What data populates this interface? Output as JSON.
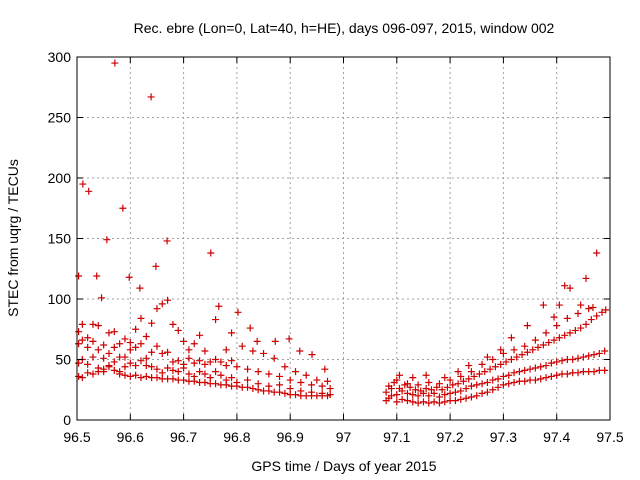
{
  "colors": {
    "series": "#cc0000",
    "grid": "#a0a0a0",
    "axis": "#000000",
    "background": "#ffffff"
  },
  "chart_data": {
    "type": "scatter",
    "title": "Rec. ebre (Lon=0, Lat=40, h=HE), days 096-097, 2015, window 002",
    "xlabel": "GPS time / Days of year 2015",
    "ylabel": "STEC from uqrg / TECUs",
    "xlim": [
      96.5,
      97.5
    ],
    "ylim": [
      0,
      300
    ],
    "xticks": [
      "96.5",
      "96.6",
      "96.7",
      "96.8",
      "96.9",
      "97",
      "97.1",
      "97.2",
      "97.3",
      "97.4",
      "97.5"
    ],
    "yticks": [
      "0",
      "50",
      "100",
      "150",
      "200",
      "250",
      "300"
    ],
    "grid": true,
    "marker": "plus",
    "legend": "none",
    "points": [
      [
        96.503,
        119
      ],
      [
        96.511,
        195
      ],
      [
        96.522,
        189
      ],
      [
        96.537,
        119
      ],
      [
        96.546,
        101
      ],
      [
        96.556,
        149
      ],
      [
        96.571,
        295
      ],
      [
        96.586,
        175
      ],
      [
        96.598,
        118
      ],
      [
        96.618,
        109
      ],
      [
        96.639,
        267
      ],
      [
        96.648,
        127
      ],
      [
        96.669,
        148
      ],
      [
        96.751,
        138
      ],
      [
        96.766,
        94
      ],
      [
        96.802,
        89
      ],
      [
        96.825,
        76
      ],
      [
        96.838,
        65
      ],
      [
        96.872,
        65
      ],
      [
        96.898,
        67
      ],
      [
        96.918,
        57
      ],
      [
        96.941,
        54
      ],
      [
        96.965,
        42
      ],
      [
        96.503,
        73
      ],
      [
        96.51,
        79
      ],
      [
        96.52,
        68
      ],
      [
        96.53,
        79
      ],
      [
        96.54,
        78
      ],
      [
        96.55,
        62
      ],
      [
        96.56,
        72
      ],
      [
        96.57,
        73
      ],
      [
        96.58,
        63
      ],
      [
        96.59,
        67
      ],
      [
        96.6,
        64
      ],
      [
        96.61,
        75
      ],
      [
        96.62,
        84
      ],
      [
        96.63,
        69
      ],
      [
        96.64,
        80
      ],
      [
        96.65,
        92
      ],
      [
        96.66,
        96
      ],
      [
        96.67,
        99
      ],
      [
        96.68,
        79
      ],
      [
        96.69,
        74
      ],
      [
        96.7,
        65
      ],
      [
        96.71,
        58
      ],
      [
        96.72,
        63
      ],
      [
        96.73,
        70
      ],
      [
        96.74,
        57
      ],
      [
        96.76,
        83
      ],
      [
        96.78,
        58
      ],
      [
        96.79,
        72
      ],
      [
        96.81,
        61
      ],
      [
        96.83,
        57
      ],
      [
        96.85,
        55
      ],
      [
        96.87,
        51
      ],
      [
        96.89,
        44
      ],
      [
        96.91,
        40
      ],
      [
        96.93,
        37
      ],
      [
        96.95,
        33
      ],
      [
        96.97,
        32
      ],
      [
        96.503,
        63
      ],
      [
        96.51,
        66
      ],
      [
        96.52,
        60
      ],
      [
        96.53,
        65
      ],
      [
        96.54,
        58
      ],
      [
        96.55,
        51
      ],
      [
        96.56,
        55
      ],
      [
        96.57,
        60
      ],
      [
        96.58,
        52
      ],
      [
        96.59,
        52
      ],
      [
        96.6,
        58
      ],
      [
        96.61,
        60
      ],
      [
        96.62,
        63
      ],
      [
        96.63,
        51
      ],
      [
        96.64,
        56
      ],
      [
        96.65,
        61
      ],
      [
        96.66,
        55
      ],
      [
        96.67,
        56
      ],
      [
        96.68,
        48
      ],
      [
        96.69,
        49
      ],
      [
        96.7,
        46
      ],
      [
        96.71,
        51
      ],
      [
        96.72,
        47
      ],
      [
        96.73,
        49
      ],
      [
        96.74,
        46
      ],
      [
        96.75,
        48
      ],
      [
        96.76,
        50
      ],
      [
        96.77,
        48
      ],
      [
        96.78,
        45
      ],
      [
        96.79,
        49
      ],
      [
        96.8,
        44
      ],
      [
        96.82,
        42
      ],
      [
        96.84,
        40
      ],
      [
        96.86,
        38
      ],
      [
        96.88,
        36
      ],
      [
        96.9,
        33
      ],
      [
        96.92,
        31
      ],
      [
        96.94,
        29
      ],
      [
        96.96,
        28
      ],
      [
        96.975,
        26
      ],
      [
        96.503,
        47
      ],
      [
        96.51,
        50
      ],
      [
        96.52,
        46
      ],
      [
        96.53,
        52
      ],
      [
        96.54,
        43
      ],
      [
        96.55,
        40
      ],
      [
        96.56,
        44
      ],
      [
        96.57,
        48
      ],
      [
        96.58,
        40
      ],
      [
        96.59,
        44
      ],
      [
        96.6,
        47
      ],
      [
        96.61,
        45
      ],
      [
        96.62,
        49
      ],
      [
        96.63,
        45
      ],
      [
        96.64,
        44
      ],
      [
        96.65,
        42
      ],
      [
        96.66,
        39
      ],
      [
        96.67,
        43
      ],
      [
        96.68,
        41
      ],
      [
        96.69,
        40
      ],
      [
        96.7,
        43
      ],
      [
        96.71,
        38
      ],
      [
        96.72,
        36
      ],
      [
        96.73,
        40
      ],
      [
        96.74,
        38
      ],
      [
        96.75,
        35
      ],
      [
        96.76,
        40
      ],
      [
        96.77,
        37
      ],
      [
        96.78,
        33
      ],
      [
        96.79,
        35
      ],
      [
        96.8,
        31
      ],
      [
        96.82,
        33
      ],
      [
        96.84,
        30
      ],
      [
        96.86,
        28
      ],
      [
        96.88,
        29
      ],
      [
        96.9,
        26
      ],
      [
        96.92,
        24
      ],
      [
        96.94,
        23
      ],
      [
        96.96,
        22
      ],
      [
        96.975,
        21
      ],
      [
        96.503,
        36
      ],
      [
        96.51,
        35
      ],
      [
        96.52,
        39
      ],
      [
        96.53,
        38
      ],
      [
        96.54,
        40
      ],
      [
        96.55,
        42
      ],
      [
        96.56,
        45
      ],
      [
        96.57,
        41
      ],
      [
        96.58,
        38
      ],
      [
        96.59,
        37
      ],
      [
        96.6,
        36
      ],
      [
        96.61,
        37
      ],
      [
        96.62,
        35
      ],
      [
        96.63,
        36
      ],
      [
        96.64,
        35
      ],
      [
        96.65,
        35
      ],
      [
        96.66,
        34
      ],
      [
        96.67,
        34
      ],
      [
        96.68,
        34
      ],
      [
        96.69,
        33
      ],
      [
        96.7,
        33
      ],
      [
        96.71,
        32
      ],
      [
        96.72,
        32
      ],
      [
        96.73,
        31
      ],
      [
        96.74,
        31
      ],
      [
        96.75,
        30
      ],
      [
        96.76,
        30
      ],
      [
        96.77,
        29
      ],
      [
        96.78,
        29
      ],
      [
        96.79,
        28
      ],
      [
        96.8,
        28
      ],
      [
        96.81,
        27
      ],
      [
        96.82,
        27
      ],
      [
        96.83,
        26
      ],
      [
        96.84,
        25
      ],
      [
        96.85,
        24
      ],
      [
        96.86,
        24
      ],
      [
        96.87,
        23
      ],
      [
        96.88,
        23
      ],
      [
        96.89,
        22
      ],
      [
        96.9,
        21
      ],
      [
        96.91,
        21
      ],
      [
        96.92,
        20
      ],
      [
        96.93,
        20
      ],
      [
        96.94,
        20
      ],
      [
        96.95,
        20
      ],
      [
        96.96,
        20
      ],
      [
        96.97,
        20
      ],
      [
        97.08,
        16
      ],
      [
        97.085,
        18
      ],
      [
        97.09,
        20
      ],
      [
        97.1,
        15
      ],
      [
        97.11,
        17
      ],
      [
        97.12,
        16
      ],
      [
        97.13,
        15
      ],
      [
        97.14,
        14
      ],
      [
        97.15,
        15
      ],
      [
        97.16,
        14
      ],
      [
        97.17,
        15
      ],
      [
        97.18,
        14
      ],
      [
        97.19,
        15
      ],
      [
        97.2,
        16
      ],
      [
        97.21,
        16
      ],
      [
        97.22,
        17
      ],
      [
        97.23,
        18
      ],
      [
        97.24,
        19
      ],
      [
        97.25,
        20
      ],
      [
        97.26,
        22
      ],
      [
        97.27,
        23
      ],
      [
        97.28,
        25
      ],
      [
        97.29,
        27
      ],
      [
        97.3,
        29
      ],
      [
        97.31,
        30
      ],
      [
        97.32,
        31
      ],
      [
        97.33,
        32
      ],
      [
        97.34,
        32
      ],
      [
        97.35,
        33
      ],
      [
        97.36,
        33
      ],
      [
        97.37,
        34
      ],
      [
        97.38,
        35
      ],
      [
        97.39,
        36
      ],
      [
        97.4,
        37
      ],
      [
        97.41,
        38
      ],
      [
        97.42,
        38
      ],
      [
        97.43,
        39
      ],
      [
        97.44,
        39
      ],
      [
        97.45,
        40
      ],
      [
        97.46,
        40
      ],
      [
        97.47,
        40
      ],
      [
        97.48,
        41
      ],
      [
        97.49,
        41
      ],
      [
        97.08,
        23
      ],
      [
        97.09,
        26
      ],
      [
        97.1,
        21
      ],
      [
        97.11,
        24
      ],
      [
        97.12,
        22
      ],
      [
        97.13,
        21
      ],
      [
        97.14,
        20
      ],
      [
        97.15,
        22
      ],
      [
        97.16,
        20
      ],
      [
        97.17,
        22
      ],
      [
        97.18,
        19
      ],
      [
        97.19,
        21
      ],
      [
        97.2,
        22
      ],
      [
        97.21,
        23
      ],
      [
        97.22,
        24
      ],
      [
        97.23,
        26
      ],
      [
        97.24,
        28
      ],
      [
        97.25,
        29
      ],
      [
        97.26,
        30
      ],
      [
        97.27,
        31
      ],
      [
        97.28,
        33
      ],
      [
        97.29,
        34
      ],
      [
        97.3,
        36
      ],
      [
        97.31,
        37
      ],
      [
        97.32,
        39
      ],
      [
        97.33,
        40
      ],
      [
        97.34,
        41
      ],
      [
        97.35,
        42
      ],
      [
        97.36,
        43
      ],
      [
        97.37,
        44
      ],
      [
        97.38,
        45
      ],
      [
        97.39,
        47
      ],
      [
        97.4,
        48
      ],
      [
        97.41,
        49
      ],
      [
        97.42,
        50
      ],
      [
        97.43,
        50
      ],
      [
        97.44,
        51
      ],
      [
        97.45,
        52
      ],
      [
        97.46,
        53
      ],
      [
        97.47,
        54
      ],
      [
        97.48,
        55
      ],
      [
        97.49,
        57
      ],
      [
        97.085,
        28
      ],
      [
        97.095,
        31
      ],
      [
        97.105,
        26
      ],
      [
        97.115,
        29
      ],
      [
        97.125,
        27
      ],
      [
        97.135,
        25
      ],
      [
        97.145,
        24
      ],
      [
        97.155,
        26
      ],
      [
        97.165,
        25
      ],
      [
        97.175,
        27
      ],
      [
        97.185,
        25
      ],
      [
        97.195,
        27
      ],
      [
        97.205,
        29
      ],
      [
        97.215,
        30
      ],
      [
        97.225,
        32
      ],
      [
        97.235,
        34
      ],
      [
        97.245,
        36
      ],
      [
        97.255,
        38
      ],
      [
        97.265,
        40
      ],
      [
        97.275,
        42
      ],
      [
        97.285,
        44
      ],
      [
        97.295,
        46
      ],
      [
        97.305,
        48
      ],
      [
        97.315,
        50
      ],
      [
        97.325,
        52
      ],
      [
        97.335,
        54
      ],
      [
        97.345,
        56
      ],
      [
        97.355,
        58
      ],
      [
        97.365,
        60
      ],
      [
        97.375,
        62
      ],
      [
        97.385,
        64
      ],
      [
        97.395,
        66
      ],
      [
        97.405,
        68
      ],
      [
        97.415,
        70
      ],
      [
        97.425,
        72
      ],
      [
        97.435,
        74
      ],
      [
        97.445,
        76
      ],
      [
        97.455,
        79
      ],
      [
        97.465,
        83
      ],
      [
        97.475,
        86
      ],
      [
        97.485,
        89
      ],
      [
        97.1,
        33
      ],
      [
        97.12,
        30
      ],
      [
        97.14,
        29
      ],
      [
        97.16,
        31
      ],
      [
        97.18,
        30
      ],
      [
        97.2,
        33
      ],
      [
        97.22,
        36
      ],
      [
        97.24,
        40
      ],
      [
        97.26,
        46
      ],
      [
        97.28,
        50
      ],
      [
        97.3,
        55
      ],
      [
        97.32,
        58
      ],
      [
        97.34,
        61
      ],
      [
        97.36,
        66
      ],
      [
        97.38,
        72
      ],
      [
        97.4,
        78
      ],
      [
        97.42,
        84
      ],
      [
        97.44,
        88
      ],
      [
        97.46,
        92
      ],
      [
        97.105,
        37
      ],
      [
        97.13,
        35
      ],
      [
        97.155,
        37
      ],
      [
        97.19,
        35
      ],
      [
        97.215,
        40
      ],
      [
        97.235,
        45
      ],
      [
        97.27,
        52
      ],
      [
        97.295,
        58
      ],
      [
        97.315,
        68
      ],
      [
        97.345,
        78
      ],
      [
        97.375,
        95
      ],
      [
        97.395,
        85
      ],
      [
        97.405,
        95
      ],
      [
        97.415,
        111
      ],
      [
        97.425,
        109
      ],
      [
        97.445,
        95
      ],
      [
        97.455,
        117
      ],
      [
        97.468,
        93
      ],
      [
        97.475,
        138
      ],
      [
        97.492,
        91
      ]
    ]
  }
}
